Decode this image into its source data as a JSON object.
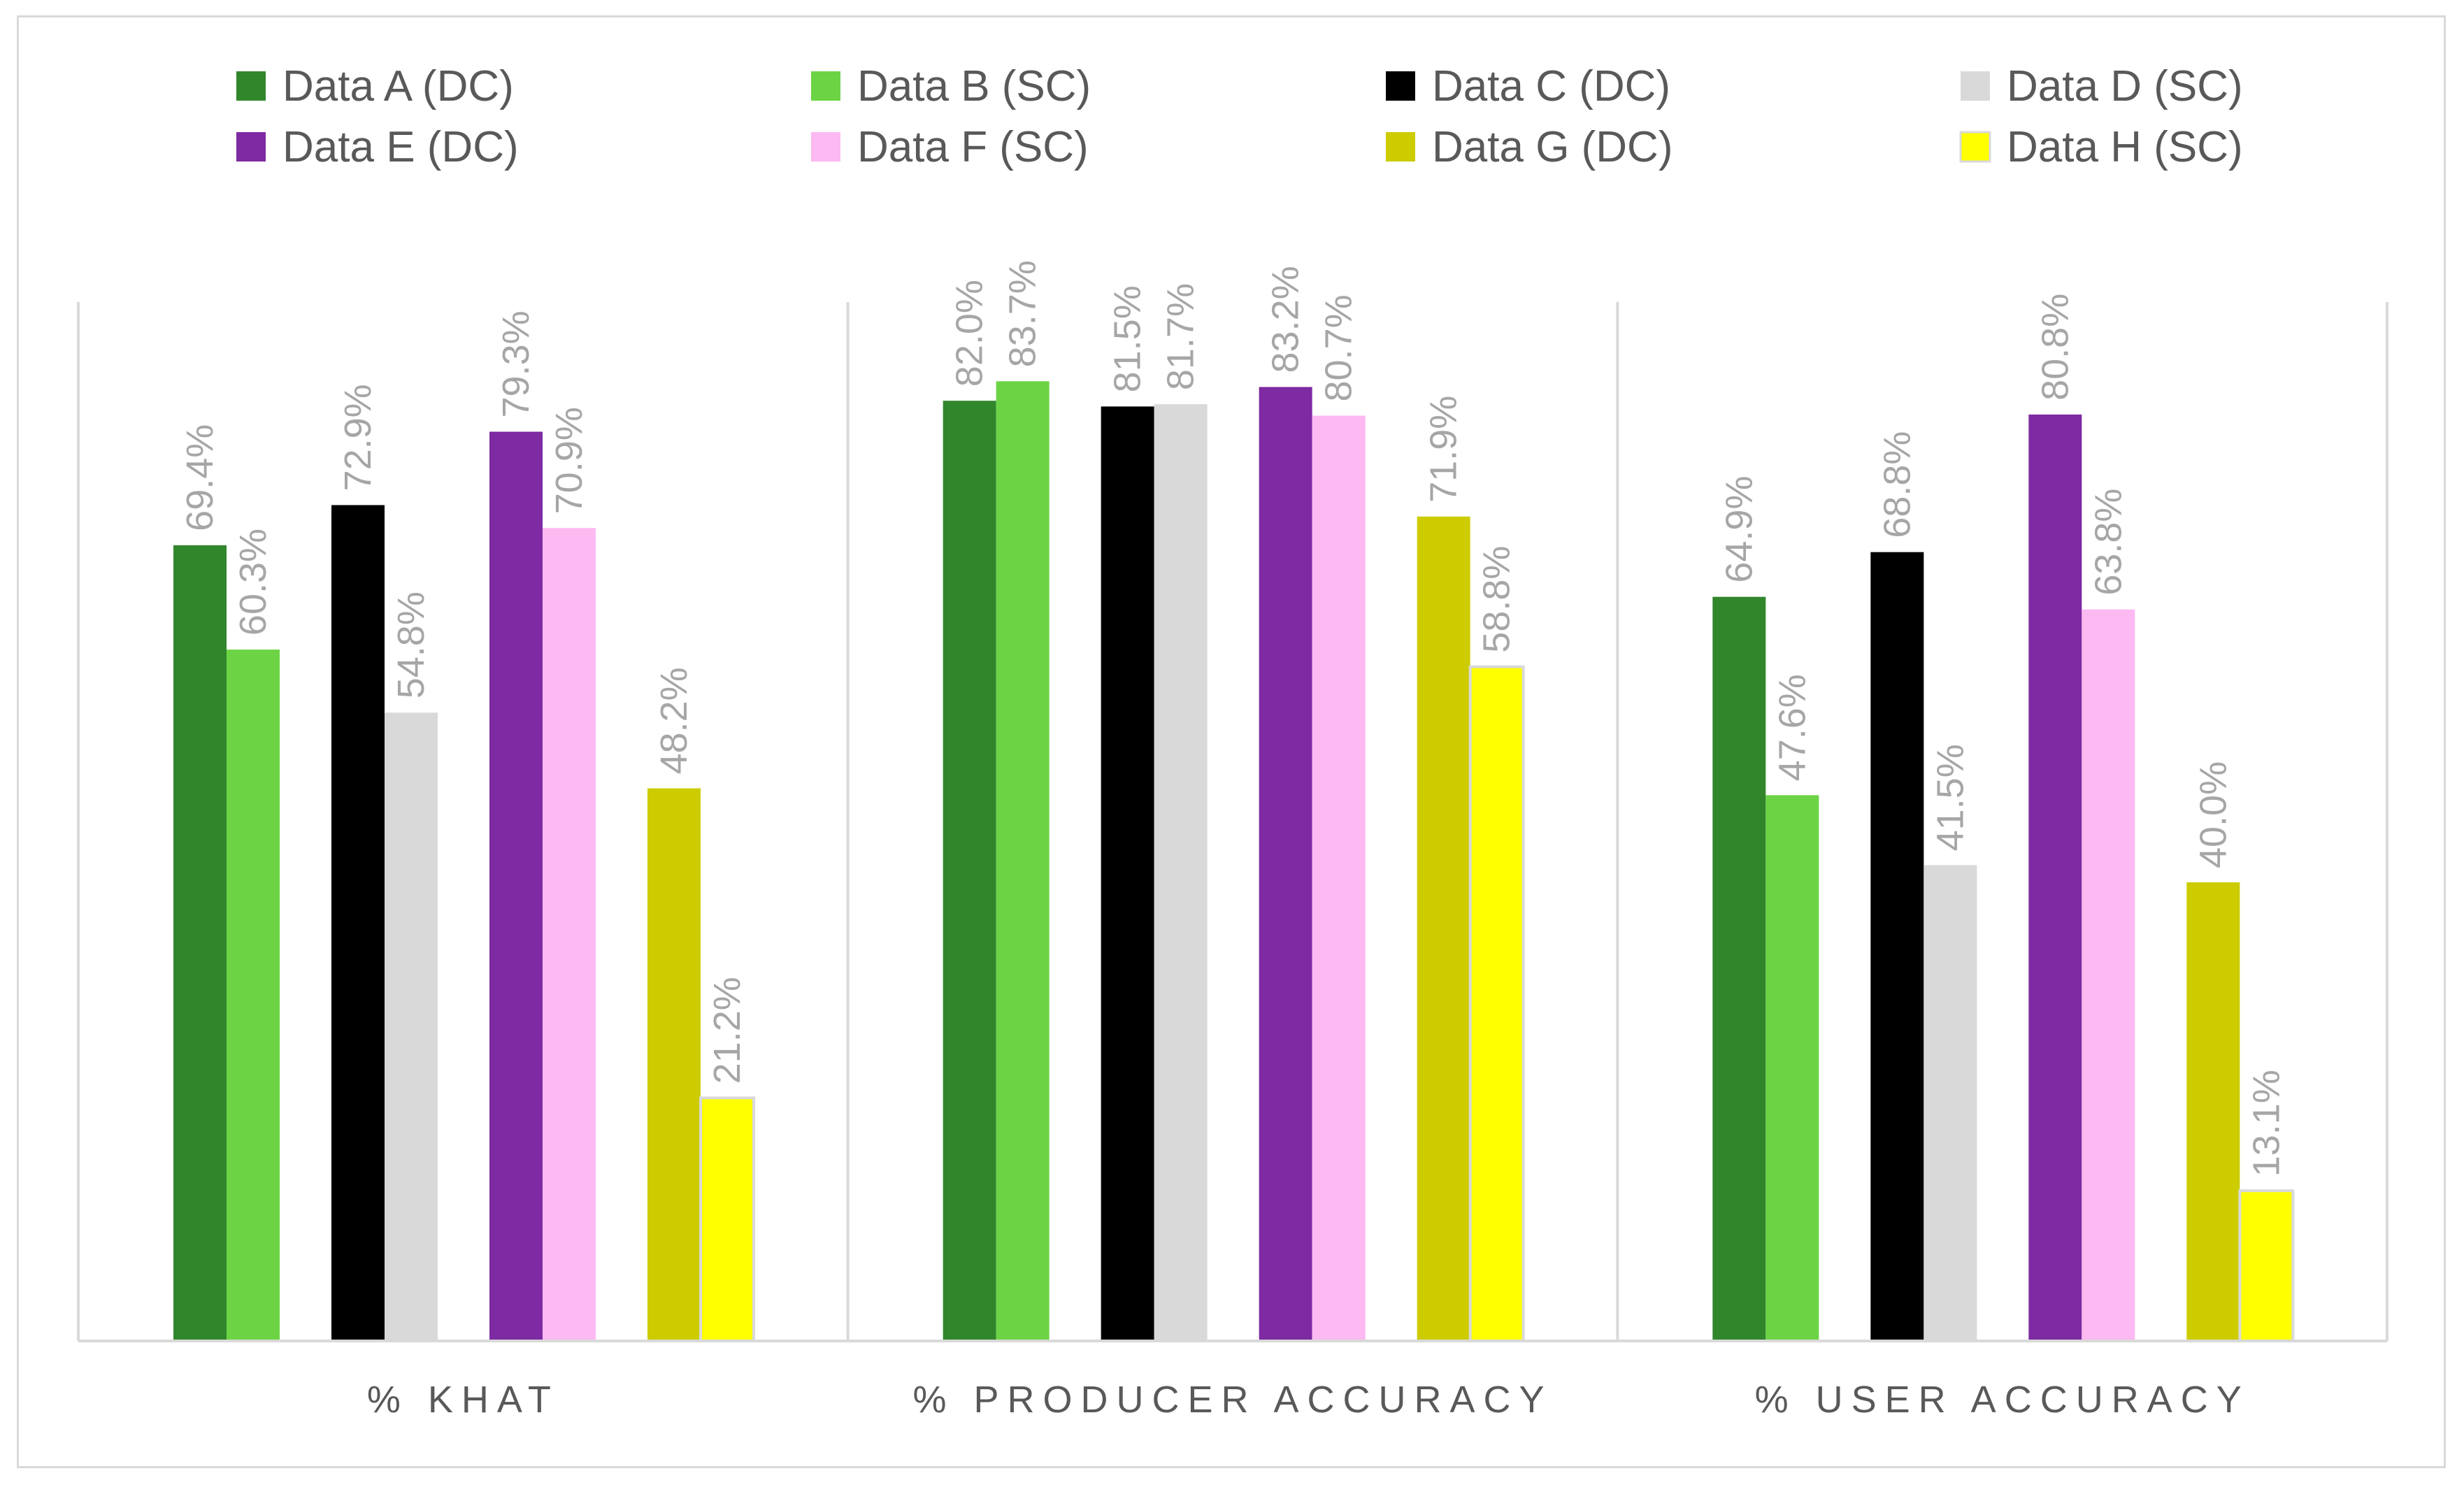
{
  "chart_data": {
    "type": "bar",
    "categories": [
      "% KHAT",
      "% PRODUCER ACCURACY",
      "% USER ACCURACY"
    ],
    "series": [
      {
        "name": "Data A (DC)",
        "color": "#31862c",
        "values": [
          69.4,
          82.0,
          64.9
        ],
        "labels": [
          "69.4%",
          "82.0%",
          "64.9%"
        ]
      },
      {
        "name": "Data B (SC)",
        "color": "#6cd444",
        "values": [
          60.3,
          83.7,
          47.6
        ],
        "labels": [
          "60.3%",
          "83.7%",
          "47.6%"
        ]
      },
      {
        "name": "Data C (DC)",
        "color": "#000000",
        "values": [
          72.9,
          81.5,
          68.8
        ],
        "labels": [
          "72.9%",
          "81.5%",
          "68.8%"
        ]
      },
      {
        "name": "Data D (SC)",
        "color": "#d9d9d9",
        "values": [
          54.8,
          81.7,
          41.5
        ],
        "labels": [
          "54.8%",
          "81.7%",
          "41.5%"
        ]
      },
      {
        "name": "Data E (DC)",
        "color": "#7e2aa2",
        "values": [
          79.3,
          83.2,
          80.8
        ],
        "labels": [
          "79.3%",
          "83.2%",
          "80.8%"
        ]
      },
      {
        "name": "Data F (SC)",
        "color": "#fdb9f2",
        "values": [
          70.9,
          80.7,
          63.8
        ],
        "labels": [
          "70.9%",
          "80.7%",
          "63.8%"
        ]
      },
      {
        "name": "Data G (DC)",
        "color": "#cccc00",
        "values": [
          48.2,
          71.9,
          40.0
        ],
        "labels": [
          "48.2%",
          "71.9%",
          "40.0%"
        ]
      },
      {
        "name": "Data H (SC)",
        "color": "#ffff00",
        "outline": "#d9d9d9",
        "values": [
          21.2,
          58.8,
          13.1
        ],
        "labels": [
          "21.2%",
          "58.8%",
          "13.1%"
        ]
      }
    ],
    "ylim": [
      0,
      100
    ],
    "grid": false,
    "legend_position": "top",
    "data_labels_shown": true,
    "category_separators": true
  }
}
